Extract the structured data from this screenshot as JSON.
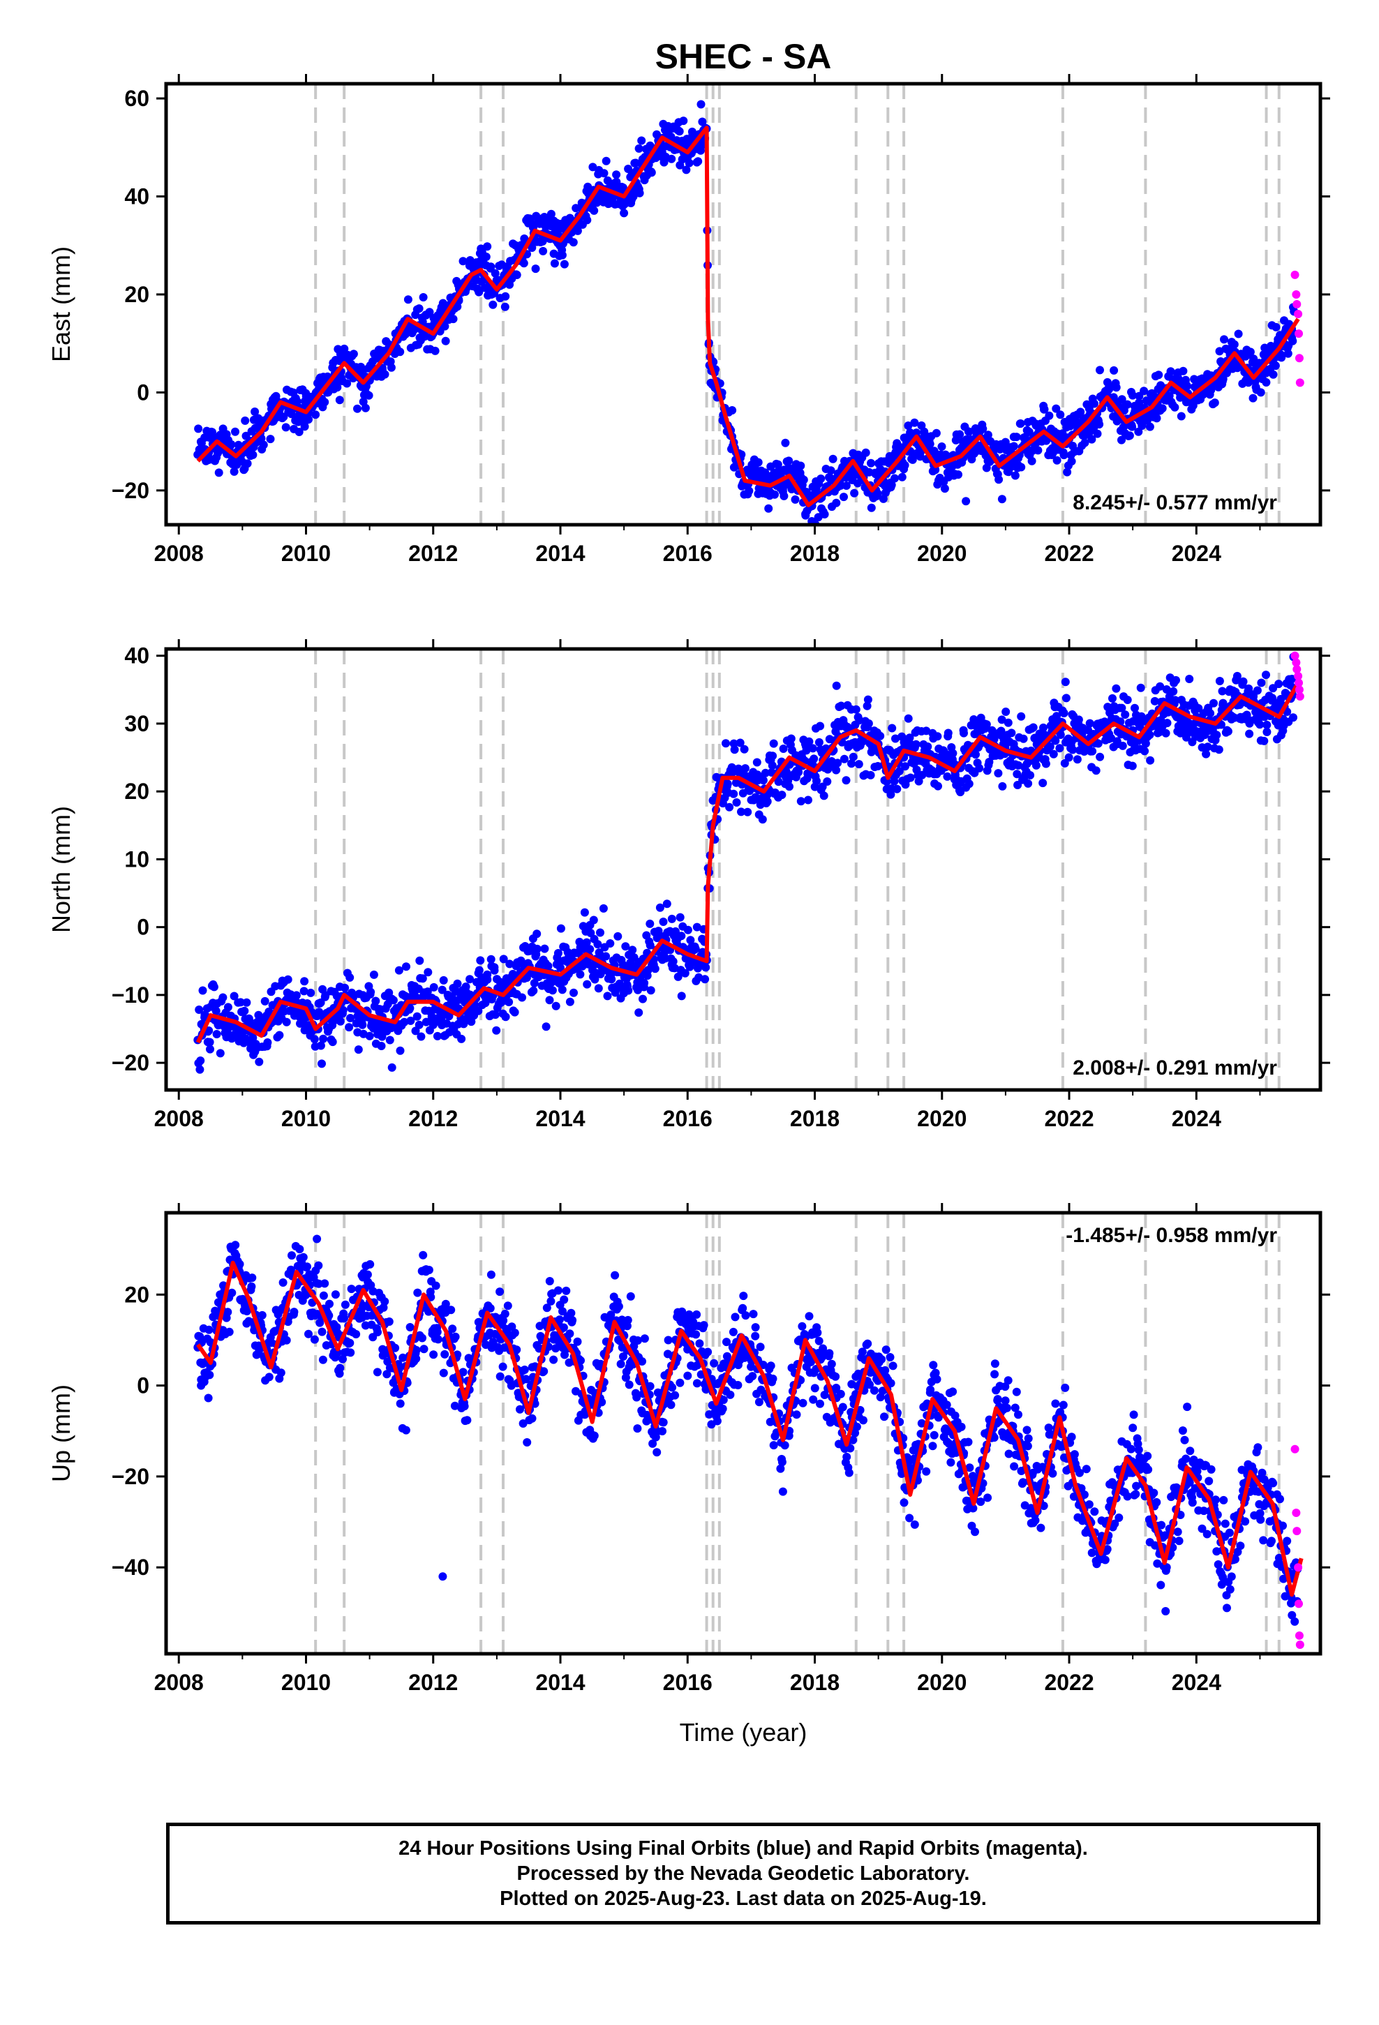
{
  "title": "SHEC - SA",
  "x_axis_label": "Time (year)",
  "colors": {
    "final_orbits": "#0000ff",
    "rapid_orbits": "#ff00ff",
    "model": "#ff0000",
    "event_lines": "#c8c8c8"
  },
  "footer": {
    "line1": "24 Hour Positions Using Final Orbits (blue) and Rapid Orbits (magenta).",
    "line2": "Processed by the Nevada Geodetic Laboratory.",
    "line3": "Plotted on 2025-Aug-23. Last data on 2025-Aug-19."
  },
  "chart_data": [
    {
      "type": "scatter",
      "name": "east",
      "ylabel": "East (mm)",
      "rate": "8.245+/- 0.577 mm/yr",
      "rate_position": "bottom-right",
      "xlim": [
        2007.8,
        2025.95
      ],
      "ylim": [
        -27,
        63
      ],
      "xticks": [
        2008,
        2010,
        2012,
        2014,
        2016,
        2018,
        2020,
        2022,
        2024
      ],
      "yticks": [
        -20,
        0,
        20,
        40,
        60
      ],
      "event_lines": [
        2010.15,
        2010.6,
        2012.75,
        2013.1,
        2016.3,
        2016.4,
        2016.5,
        2018.65,
        2019.15,
        2019.4,
        2021.9,
        2023.2,
        2025.1,
        2025.3
      ],
      "model": {
        "x": [
          2008.3,
          2008.6,
          2008.9,
          2009.3,
          2009.6,
          2010.0,
          2010.3,
          2010.6,
          2010.9,
          2011.3,
          2011.6,
          2012.0,
          2012.3,
          2012.6,
          2012.75,
          2013.0,
          2013.3,
          2013.6,
          2014.0,
          2014.3,
          2014.6,
          2015.0,
          2015.3,
          2015.6,
          2016.0,
          2016.3,
          2016.32,
          2016.35,
          2016.45,
          2016.6,
          2016.9,
          2017.3,
          2017.6,
          2017.9,
          2018.3,
          2018.6,
          2018.9,
          2019.3,
          2019.6,
          2019.9,
          2020.3,
          2020.6,
          2020.9,
          2021.3,
          2021.6,
          2021.9,
          2022.3,
          2022.6,
          2022.9,
          2023.3,
          2023.6,
          2023.9,
          2024.3,
          2024.6,
          2024.9,
          2025.3,
          2025.6
        ],
        "y": [
          -14,
          -10,
          -13,
          -8,
          -2,
          -4,
          1,
          6,
          2,
          8,
          15,
          12,
          18,
          24,
          25,
          21,
          26,
          33,
          31,
          36,
          42,
          40,
          46,
          52,
          49,
          54,
          15,
          6,
          2,
          -5,
          -18,
          -19,
          -17,
          -23,
          -19,
          -14,
          -20,
          -14,
          -9,
          -15,
          -13,
          -9,
          -15,
          -11,
          -8,
          -11,
          -6,
          -1,
          -6,
          -3,
          2,
          -1,
          3,
          8,
          3,
          9,
          15
        ]
      },
      "final_points": {
        "x": [
          2008.4,
          2008.8,
          2009.2,
          2009.6,
          2010.0,
          2010.4,
          2010.8,
          2011.2,
          2011.6,
          2012.0,
          2012.4,
          2012.8,
          2013.2,
          2013.6,
          2014.0,
          2014.4,
          2014.8,
          2015.2,
          2015.6,
          2016.0,
          2016.25,
          2016.7,
          2017.1,
          2017.5,
          2017.9,
          2018.3,
          2018.7,
          2019.1,
          2019.5,
          2019.9,
          2020.3,
          2020.7,
          2021.1,
          2021.5,
          2021.9,
          2022.3,
          2022.7,
          2023.0,
          2023.6,
          2024.0,
          2024.4,
          2024.8,
          2025.2,
          2025.5
        ],
        "y": [
          -13,
          -11,
          -10,
          -3,
          -4,
          1,
          4,
          5,
          14,
          12,
          19,
          24,
          22,
          31,
          31,
          36,
          42,
          41,
          49,
          50,
          53,
          -9,
          -17,
          -19,
          -22,
          -20,
          -15,
          -19,
          -12,
          -13,
          -14,
          -10,
          -13,
          -10,
          -10,
          -6,
          -1,
          -5,
          1,
          1,
          6,
          5,
          9,
          13
        ]
      },
      "rapid_points": {
        "x": [
          2025.55,
          2025.57,
          2025.58,
          2025.6,
          2025.61,
          2025.62,
          2025.63
        ],
        "y": [
          24,
          20,
          18,
          16,
          12,
          7,
          2
        ]
      }
    },
    {
      "type": "scatter",
      "name": "north",
      "ylabel": "North (mm)",
      "rate": "2.008+/- 0.291 mm/yr",
      "rate_position": "bottom-right",
      "xlim": [
        2007.8,
        2025.95
      ],
      "ylim": [
        -24,
        41
      ],
      "xticks": [
        2008,
        2010,
        2012,
        2014,
        2016,
        2018,
        2020,
        2022,
        2024
      ],
      "yticks": [
        -20,
        -10,
        0,
        10,
        20,
        30,
        40
      ],
      "event_lines": [
        2010.15,
        2010.6,
        2012.75,
        2013.1,
        2016.3,
        2016.4,
        2016.5,
        2018.65,
        2019.15,
        2019.4,
        2021.9,
        2023.2,
        2025.1,
        2025.3
      ],
      "model": {
        "x": [
          2008.3,
          2008.5,
          2008.9,
          2009.3,
          2009.6,
          2010.0,
          2010.15,
          2010.5,
          2010.6,
          2011.0,
          2011.4,
          2011.6,
          2012.0,
          2012.4,
          2012.8,
          2013.1,
          2013.5,
          2014.0,
          2014.4,
          2014.8,
          2015.2,
          2015.6,
          2016.0,
          2016.3,
          2016.32,
          2016.4,
          2016.55,
          2016.8,
          2017.2,
          2017.6,
          2018.0,
          2018.4,
          2018.65,
          2019.0,
          2019.15,
          2019.4,
          2019.8,
          2020.2,
          2020.6,
          2021.0,
          2021.4,
          2021.9,
          2022.3,
          2022.7,
          2023.1,
          2023.5,
          2023.9,
          2024.3,
          2024.7,
          2025.1,
          2025.3,
          2025.6
        ],
        "y": [
          -17,
          -13,
          -14,
          -16,
          -11,
          -12,
          -15,
          -12,
          -10,
          -13,
          -14,
          -11,
          -11,
          -13,
          -9,
          -10,
          -6,
          -7,
          -4,
          -6,
          -7,
          -2,
          -4,
          -5,
          6,
          15,
          22,
          22,
          20,
          25,
          23,
          28,
          29,
          27,
          22,
          26,
          25,
          23,
          28,
          26,
          25,
          30,
          27,
          30,
          28,
          33,
          31,
          30,
          34,
          32,
          31,
          36
        ]
      },
      "final_points": {
        "x": [
          2008.4,
          2008.8,
          2009.2,
          2009.6,
          2010.0,
          2010.4,
          2010.8,
          2011.2,
          2011.6,
          2012.0,
          2012.4,
          2012.8,
          2013.2,
          2013.6,
          2014.0,
          2014.4,
          2014.8,
          2015.2,
          2015.6,
          2016.0,
          2016.6,
          2017.0,
          2017.4,
          2017.8,
          2018.2,
          2018.6,
          2019.0,
          2019.4,
          2019.8,
          2020.2,
          2020.6,
          2021.0,
          2021.4,
          2021.8,
          2022.2,
          2022.6,
          2023.0,
          2023.6,
          2024.0,
          2024.4,
          2024.8,
          2025.2,
          2025.5
        ],
        "y": [
          -15,
          -14,
          -15,
          -12,
          -13,
          -13,
          -12,
          -14,
          -12,
          -11,
          -12,
          -10,
          -9,
          -7,
          -6,
          -5,
          -6,
          -6,
          -3,
          -4,
          22,
          21,
          22,
          25,
          24,
          29,
          27,
          25,
          25,
          24,
          27,
          26,
          26,
          29,
          27,
          29,
          29,
          32,
          31,
          32,
          33,
          32,
          34
        ]
      },
      "rapid_points": {
        "x": [
          2025.55,
          2025.57,
          2025.58,
          2025.6,
          2025.61,
          2025.62,
          2025.63
        ],
        "y": [
          40,
          39,
          38,
          37,
          36,
          35,
          34
        ]
      }
    },
    {
      "type": "scatter",
      "name": "up",
      "ylabel": "Up (mm)",
      "rate": "-1.485+/- 0.958 mm/yr",
      "rate_position": "top-right",
      "xlim": [
        2007.8,
        2025.95
      ],
      "ylim": [
        -59,
        38
      ],
      "xticks": [
        2008,
        2010,
        2012,
        2014,
        2016,
        2018,
        2020,
        2022,
        2024
      ],
      "yticks": [
        -40,
        -20,
        0,
        20
      ],
      "event_lines": [
        2010.15,
        2010.6,
        2012.75,
        2013.1,
        2016.3,
        2016.4,
        2016.5,
        2018.65,
        2019.15,
        2019.4,
        2021.9,
        2023.2,
        2025.1,
        2025.3
      ],
      "model": {
        "x": [
          2008.3,
          2008.5,
          2008.85,
          2009.1,
          2009.45,
          2009.85,
          2010.2,
          2010.5,
          2010.9,
          2011.2,
          2011.5,
          2011.85,
          2012.2,
          2012.5,
          2012.85,
          2013.2,
          2013.5,
          2013.85,
          2014.2,
          2014.5,
          2014.85,
          2015.2,
          2015.5,
          2015.9,
          2016.2,
          2016.3,
          2016.45,
          2016.85,
          2017.2,
          2017.5,
          2017.85,
          2018.2,
          2018.5,
          2018.85,
          2019.2,
          2019.5,
          2019.85,
          2020.2,
          2020.5,
          2020.85,
          2021.2,
          2021.5,
          2021.85,
          2022.1,
          2022.5,
          2022.9,
          2023.2,
          2023.5,
          2023.85,
          2024.2,
          2024.5,
          2024.85,
          2025.2,
          2025.5,
          2025.65
        ],
        "y": [
          9,
          5,
          27,
          19,
          4,
          25,
          18,
          8,
          21,
          14,
          -1,
          20,
          12,
          -3,
          16,
          9,
          -6,
          15,
          7,
          -8,
          14,
          5,
          -9,
          12,
          6,
          2,
          -4,
          11,
          2,
          -12,
          10,
          1,
          -13,
          6,
          -2,
          -24,
          -3,
          -10,
          -26,
          -5,
          -12,
          -28,
          -7,
          -22,
          -37,
          -16,
          -22,
          -39,
          -18,
          -25,
          -40,
          -19,
          -26,
          -46,
          -38
        ]
      },
      "final_points": {
        "x": [
          2008.35,
          2008.7,
          2009.0,
          2009.4,
          2009.9,
          2010.3,
          2010.7,
          2011.0,
          2011.5,
          2011.9,
          2012.2,
          2012.5,
          2012.9,
          2013.3,
          2013.6,
          2013.9,
          2014.3,
          2014.6,
          2014.9,
          2015.3,
          2015.6,
          2015.9,
          2016.2,
          2016.6,
          2016.9,
          2017.3,
          2017.6,
          2017.9,
          2018.3,
          2018.6,
          2018.9,
          2019.3,
          2019.6,
          2019.9,
          2020.3,
          2020.6,
          2020.9,
          2021.3,
          2021.6,
          2021.9,
          2022.3,
          2022.6,
          2022.9,
          2023.5,
          2023.9,
          2024.3,
          2024.6,
          2024.9,
          2025.3,
          2012.15
        ],
        "y": [
          0,
          22,
          24,
          6,
          30,
          16,
          12,
          22,
          2,
          18,
          10,
          -2,
          17,
          6,
          -4,
          14,
          4,
          -6,
          13,
          2,
          -8,
          14,
          5,
          2,
          10,
          -8,
          -10,
          8,
          -1,
          -12,
          5,
          -6,
          -20,
          -4,
          -14,
          -22,
          -6,
          -16,
          -24,
          -10,
          -30,
          -36,
          -18,
          -36,
          -20,
          -30,
          -38,
          -22,
          -32,
          -42
        ]
      },
      "rapid_points": {
        "x": [
          2025.55,
          2025.57,
          2025.58,
          2025.6,
          2025.61,
          2025.62,
          2025.63
        ],
        "y": [
          -14,
          -28,
          -32,
          -40,
          -48,
          -55,
          -57
        ]
      }
    }
  ]
}
